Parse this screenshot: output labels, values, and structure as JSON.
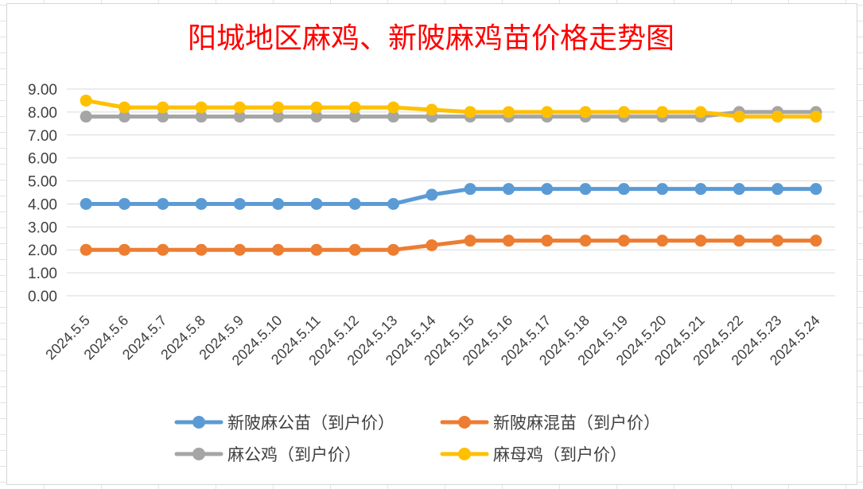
{
  "chart_data": {
    "type": "line",
    "title": "阳城地区麻鸡、新陂麻鸡苗价格走势图",
    "xlabel": "",
    "ylabel": "",
    "ylim": [
      0,
      9
    ],
    "yticks": [
      "0.00",
      "1.00",
      "2.00",
      "3.00",
      "4.00",
      "5.00",
      "6.00",
      "7.00",
      "8.00",
      "9.00"
    ],
    "grid": true,
    "legend_position": "bottom",
    "categories": [
      "2024.5.5",
      "2024.5.6",
      "2024.5.7",
      "2024.5.8",
      "2024.5.9",
      "2024.5.10",
      "2024.5.11",
      "2024.5.12",
      "2024.5.13",
      "2024.5.14",
      "2024.5.15",
      "2024.5.16",
      "2024.5.17",
      "2024.5.18",
      "2024.5.19",
      "2024.5.20",
      "2024.5.21",
      "2024.5.22",
      "2024.5.23",
      "2024.5.24"
    ],
    "series": [
      {
        "name": "新陂麻公苗（到户价）",
        "color": "#5b9bd5",
        "values": [
          4.0,
          4.0,
          4.0,
          4.0,
          4.0,
          4.0,
          4.0,
          4.0,
          4.0,
          4.4,
          4.65,
          4.65,
          4.65,
          4.65,
          4.65,
          4.65,
          4.65,
          4.65,
          4.65,
          4.65
        ]
      },
      {
        "name": "新陂麻混苗（到户价）",
        "color": "#ed7d31",
        "values": [
          2.0,
          2.0,
          2.0,
          2.0,
          2.0,
          2.0,
          2.0,
          2.0,
          2.0,
          2.2,
          2.4,
          2.4,
          2.4,
          2.4,
          2.4,
          2.4,
          2.4,
          2.4,
          2.4,
          2.4
        ]
      },
      {
        "name": "麻公鸡（到户价）",
        "color": "#a5a5a5",
        "values": [
          7.8,
          7.8,
          7.8,
          7.8,
          7.8,
          7.8,
          7.8,
          7.8,
          7.8,
          7.8,
          7.8,
          7.8,
          7.8,
          7.8,
          7.8,
          7.8,
          7.8,
          8.0,
          8.0,
          8.0
        ]
      },
      {
        "name": "麻母鸡（到户价）",
        "color": "#ffc000",
        "values": [
          8.5,
          8.2,
          8.2,
          8.2,
          8.2,
          8.2,
          8.2,
          8.2,
          8.2,
          8.1,
          8.0,
          8.0,
          8.0,
          8.0,
          8.0,
          8.0,
          8.0,
          7.8,
          7.8,
          7.8
        ]
      }
    ]
  }
}
